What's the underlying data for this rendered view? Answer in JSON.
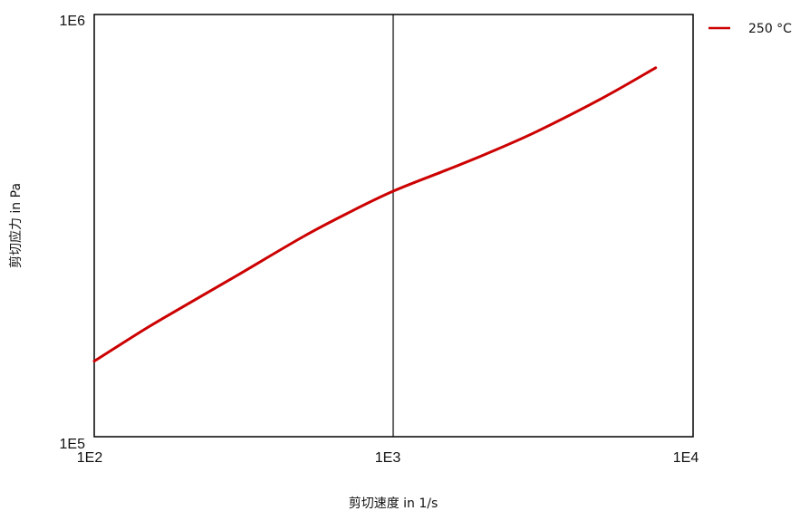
{
  "chart_data": {
    "type": "line",
    "title": "",
    "xlabel": "剪切速度 in 1/s",
    "ylabel": "剪切应力 in Pa",
    "x_scale": "log",
    "y_scale": "log",
    "xlim": [
      100,
      10000
    ],
    "ylim": [
      100000,
      1000000
    ],
    "x_ticks": [
      "1E2",
      "1E3",
      "1E4"
    ],
    "y_ticks": [
      "1E5",
      "1E6"
    ],
    "grid": "major vertical line at 1E3",
    "legend_position": "outside-top-right",
    "series": [
      {
        "name": "250 °C",
        "color": "#cc0000",
        "x": [
          100,
          150,
          200,
          300,
          500,
          700,
          1000,
          1500,
          2000,
          3000,
          5000,
          7500
        ],
        "y": [
          151000,
          181000,
          204000,
          241000,
          298000,
          338000,
          382000,
          428000,
          465000,
          528000,
          635000,
          748000
        ]
      }
    ]
  }
}
